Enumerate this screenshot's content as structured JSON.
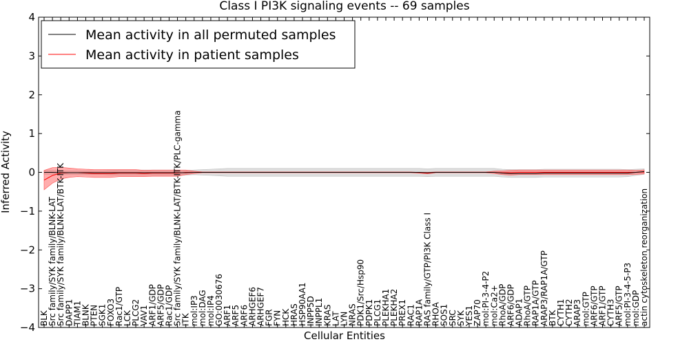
{
  "chart_data": {
    "type": "line",
    "title": "Class I PI3K signaling events -- 69 samples",
    "xlabel": "Cellular Entities",
    "ylabel": "Inferred Activity",
    "ylim": [
      -4,
      4
    ],
    "yticks": [
      -4,
      -3,
      -2,
      -1,
      0,
      1,
      2,
      3,
      4
    ],
    "grid": false,
    "legend_position": "top-left",
    "categories": [
      "BLK",
      "Src family/SYK family/BLNK-LAT",
      "Src family/SYK family/BLNK-LAT/BTK-ITK",
      "DAPP1",
      "TIAM1",
      "BLNK",
      "PTEN",
      "SGK1",
      "FOXO3",
      "Rac1/GTP",
      "LCK",
      "PLCG2",
      "VAV1",
      "ARF1/GDP",
      "ARF5/GDP",
      "Rac1/GDP",
      "Src family/SYK family/BLNK-LAT/BTK-ITK/PLC-gamma",
      "ITK",
      "mol:IP3",
      "mol:DAG",
      "mol:IP4",
      "GO:0030676",
      "ARF1",
      "ARF5",
      "ARF6",
      "ARHGEF6",
      "ARHGEF7",
      "FGR",
      "FYN",
      "HCK",
      "HRAS",
      "HSP90AA1",
      "INPP5D",
      "INPPL1",
      "KRAS",
      "LAT",
      "LYN",
      "NRAS",
      "PDK1/Src/Hsp90",
      "PDPK1",
      "PLCG1",
      "PLEKHA1",
      "PLEKHA2",
      "PREX1",
      "RAC1",
      "RAP1A",
      "RAS family/GTP/PI3K Class I",
      "RHOA",
      "SOS1",
      "SRC",
      "SYK",
      "YES1",
      "ZAP70",
      "mol:PI-3-4-P2",
      "mol:Ca2+",
      "RhoA/GDP",
      "ARF6/GDP",
      "ADAP1",
      "RhoA/GTP",
      "RAP1A/GTP",
      "ARAP3/RAP1A/GTP",
      "BTK",
      "CYTH1",
      "CYTH2",
      "ARAP3",
      "mol:GTP",
      "ARF6/GTP",
      "ARF1/GTP",
      "CYTH3",
      "ARF5/GTP",
      "mol:PI-3-4-5-P3",
      "mol:GDP",
      "actin cytoskeleton reorganization"
    ],
    "series": [
      {
        "name": "Mean activity in all permuted samples",
        "color": "#000000",
        "values": [
          0,
          0,
          -0.01,
          -0.01,
          -0.01,
          -0.01,
          -0.01,
          -0.01,
          -0.01,
          -0.01,
          -0.01,
          -0.01,
          -0.01,
          -0.01,
          -0.01,
          -0.01,
          -0.01,
          -0.01,
          0,
          0,
          0,
          0,
          0,
          0,
          0,
          0,
          0,
          0,
          0,
          0,
          0,
          0,
          0,
          0,
          0,
          0,
          0,
          0,
          0,
          0,
          0,
          0,
          0,
          0,
          0,
          0,
          -0.01,
          0,
          0,
          0,
          0,
          0,
          0,
          0,
          0,
          -0.02,
          -0.03,
          -0.03,
          -0.03,
          -0.03,
          -0.02,
          -0.02,
          -0.02,
          -0.02,
          -0.02,
          -0.02,
          -0.02,
          -0.02,
          -0.02,
          -0.02,
          -0.02,
          0,
          0.02
        ],
        "band": [
          0.05,
          0.05,
          0.05,
          0.05,
          0.05,
          0.05,
          0.05,
          0.05,
          0.06,
          0.07,
          0.07,
          0.07,
          0.07,
          0.07,
          0.07,
          0.07,
          0.07,
          0.06,
          0.06,
          0.07,
          0.08,
          0.09,
          0.1,
          0.1,
          0.1,
          0.1,
          0.1,
          0.1,
          0.1,
          0.1,
          0.1,
          0.1,
          0.1,
          0.1,
          0.1,
          0.1,
          0.1,
          0.1,
          0.1,
          0.1,
          0.1,
          0.1,
          0.1,
          0.1,
          0.1,
          0.1,
          0.1,
          0.1,
          0.1,
          0.1,
          0.1,
          0.1,
          0.1,
          0.1,
          0.1,
          0.1,
          0.1,
          0.1,
          0.1,
          0.1,
          0.1,
          0.1,
          0.1,
          0.1,
          0.1,
          0.1,
          0.1,
          0.1,
          0.1,
          0.1,
          0.09,
          0.08,
          0.07
        ]
      },
      {
        "name": "Mean activity in patient samples",
        "color": "#ff0000",
        "values": [
          -0.2,
          -0.08,
          -0.02,
          -0.01,
          -0.01,
          -0.02,
          -0.03,
          -0.03,
          -0.03,
          -0.02,
          -0.02,
          -0.02,
          -0.03,
          -0.02,
          -0.02,
          -0.02,
          -0.02,
          0,
          0,
          0,
          0,
          0,
          0,
          0,
          0,
          0,
          0,
          0,
          0,
          0,
          0,
          0,
          0,
          0,
          0,
          0,
          0,
          0,
          0,
          0,
          0,
          0,
          0,
          0,
          0,
          -0.01,
          -0.02,
          0,
          0,
          0,
          0,
          0,
          0,
          0,
          0,
          -0.01,
          -0.01,
          0,
          0,
          0,
          0,
          0,
          0,
          0,
          0,
          0,
          0,
          0,
          0,
          0,
          0,
          0,
          0.01
        ],
        "band": [
          0.25,
          0.2,
          0.15,
          0.12,
          0.1,
          0.1,
          0.1,
          0.1,
          0.1,
          0.09,
          0.09,
          0.09,
          0.08,
          0.08,
          0.08,
          0.08,
          0.08,
          0.06,
          0.03,
          0.01,
          0.01,
          0.01,
          0.01,
          0.01,
          0.01,
          0.01,
          0.01,
          0.01,
          0.01,
          0.01,
          0.01,
          0.01,
          0.01,
          0.01,
          0.01,
          0.01,
          0.01,
          0.01,
          0.01,
          0.01,
          0.01,
          0.01,
          0.01,
          0.01,
          0.01,
          0.01,
          0.02,
          0.01,
          0.01,
          0.01,
          0.01,
          0.01,
          0.01,
          0.01,
          0.03,
          0.05,
          0.06,
          0.06,
          0.06,
          0.06,
          0.06,
          0.06,
          0.06,
          0.06,
          0.06,
          0.06,
          0.06,
          0.06,
          0.06,
          0.06,
          0.06,
          0.05,
          0.05
        ]
      }
    ]
  }
}
